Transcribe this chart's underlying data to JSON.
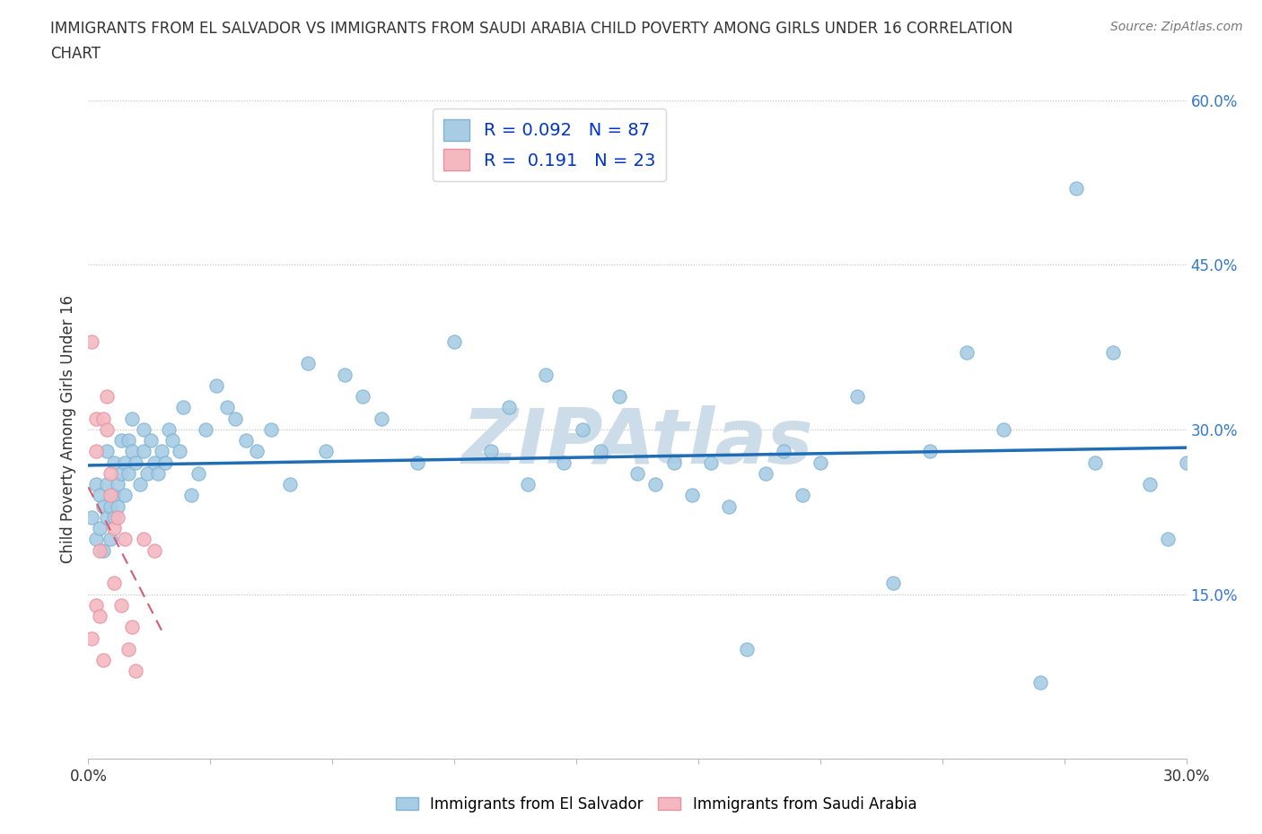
{
  "title_line1": "IMMIGRANTS FROM EL SALVADOR VS IMMIGRANTS FROM SAUDI ARABIA CHILD POVERTY AMONG GIRLS UNDER 16 CORRELATION",
  "title_line2": "CHART",
  "source": "Source: ZipAtlas.com",
  "ylabel": "Child Poverty Among Girls Under 16",
  "xlim": [
    0.0,
    0.3
  ],
  "ylim": [
    0.0,
    0.6
  ],
  "yticks": [
    0.0,
    0.15,
    0.3,
    0.45,
    0.6
  ],
  "el_salvador_color": "#a8cce4",
  "saudi_arabia_color": "#f4b8c1",
  "el_salvador_R": 0.092,
  "el_salvador_N": 87,
  "saudi_arabia_R": 0.191,
  "saudi_arabia_N": 23,
  "trend_blue_color": "#1f6eb5",
  "trend_pink_color": "#d45b72",
  "watermark": "ZIPAtlas",
  "watermark_color": "#ccdce8",
  "background_color": "#ffffff",
  "el_salvador_x": [
    0.001,
    0.002,
    0.002,
    0.003,
    0.003,
    0.004,
    0.004,
    0.005,
    0.005,
    0.005,
    0.006,
    0.006,
    0.007,
    0.007,
    0.007,
    0.008,
    0.008,
    0.009,
    0.009,
    0.01,
    0.01,
    0.011,
    0.011,
    0.012,
    0.012,
    0.013,
    0.014,
    0.015,
    0.015,
    0.016,
    0.017,
    0.018,
    0.019,
    0.02,
    0.021,
    0.022,
    0.023,
    0.025,
    0.026,
    0.028,
    0.03,
    0.032,
    0.035,
    0.038,
    0.04,
    0.043,
    0.046,
    0.05,
    0.055,
    0.06,
    0.065,
    0.07,
    0.075,
    0.08,
    0.09,
    0.1,
    0.11,
    0.115,
    0.12,
    0.125,
    0.13,
    0.135,
    0.14,
    0.145,
    0.15,
    0.155,
    0.16,
    0.165,
    0.17,
    0.175,
    0.18,
    0.185,
    0.19,
    0.195,
    0.2,
    0.21,
    0.22,
    0.23,
    0.24,
    0.25,
    0.26,
    0.27,
    0.275,
    0.28,
    0.29,
    0.295,
    0.3
  ],
  "el_salvador_y": [
    0.22,
    0.2,
    0.25,
    0.21,
    0.24,
    0.19,
    0.23,
    0.22,
    0.25,
    0.28,
    0.2,
    0.23,
    0.24,
    0.27,
    0.22,
    0.25,
    0.23,
    0.26,
    0.29,
    0.24,
    0.27,
    0.26,
    0.29,
    0.28,
    0.31,
    0.27,
    0.25,
    0.3,
    0.28,
    0.26,
    0.29,
    0.27,
    0.26,
    0.28,
    0.27,
    0.3,
    0.29,
    0.28,
    0.32,
    0.24,
    0.26,
    0.3,
    0.34,
    0.32,
    0.31,
    0.29,
    0.28,
    0.3,
    0.25,
    0.36,
    0.28,
    0.35,
    0.33,
    0.31,
    0.27,
    0.38,
    0.28,
    0.32,
    0.25,
    0.35,
    0.27,
    0.3,
    0.28,
    0.33,
    0.26,
    0.25,
    0.27,
    0.24,
    0.27,
    0.23,
    0.1,
    0.26,
    0.28,
    0.24,
    0.27,
    0.33,
    0.16,
    0.28,
    0.37,
    0.3,
    0.07,
    0.52,
    0.27,
    0.37,
    0.25,
    0.2,
    0.27
  ],
  "saudi_arabia_x": [
    0.001,
    0.001,
    0.002,
    0.002,
    0.002,
    0.003,
    0.003,
    0.004,
    0.004,
    0.005,
    0.005,
    0.006,
    0.006,
    0.007,
    0.007,
    0.008,
    0.009,
    0.01,
    0.011,
    0.012,
    0.013,
    0.015,
    0.018
  ],
  "saudi_arabia_y": [
    0.38,
    0.11,
    0.31,
    0.28,
    0.14,
    0.19,
    0.13,
    0.31,
    0.09,
    0.33,
    0.3,
    0.26,
    0.24,
    0.21,
    0.16,
    0.22,
    0.14,
    0.2,
    0.1,
    0.12,
    0.08,
    0.2,
    0.19
  ],
  "legend_el_salvador": "Immigrants from El Salvador",
  "legend_saudi_arabia": "Immigrants from Saudi Arabia"
}
